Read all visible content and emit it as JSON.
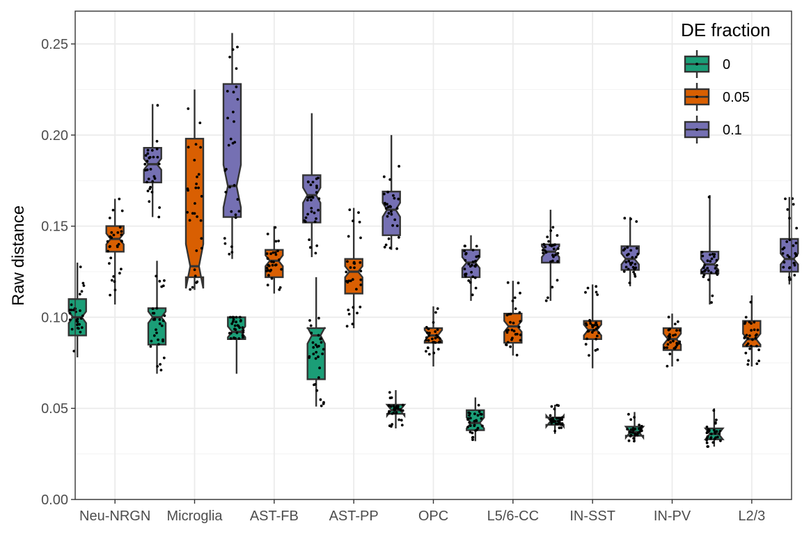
{
  "chart_data": {
    "type": "boxplot",
    "xlabel": "",
    "ylabel": "Raw distance",
    "ylim": [
      0,
      0.268
    ],
    "yticks": [
      "0.00",
      "0.05",
      "0.10",
      "0.15",
      "0.20",
      "0.25"
    ],
    "grid": true,
    "notched": true,
    "jittered_points": true,
    "legend_placement": "top-right",
    "legend": {
      "title": "DE fraction",
      "entries": [
        {
          "label": "0",
          "color": "#1B9E77"
        },
        {
          "label": "0.05",
          "color": "#D95F02"
        },
        {
          "label": "0.1",
          "color": "#7570B3"
        }
      ]
    },
    "categories": [
      "Neu-NRGN",
      "Microglia",
      "AST-FB",
      "AST-PP",
      "OPC",
      "L5/6-CC",
      "IN-SST",
      "IN-PV",
      "L2/3"
    ],
    "series": [
      {
        "name": "0",
        "color": "#1B9E77",
        "boxes": [
          {
            "q1": 0.09,
            "median": 0.1,
            "q3": 0.11,
            "whisker_low": 0.078,
            "whisker_high": 0.13
          },
          {
            "q1": 0.085,
            "median": 0.1,
            "q3": 0.105,
            "whisker_low": 0.069,
            "whisker_high": 0.131
          },
          {
            "q1": 0.088,
            "median": 0.092,
            "q3": 0.1,
            "whisker_low": 0.069,
            "whisker_high": 0.1
          },
          {
            "q1": 0.066,
            "median": 0.09,
            "q3": 0.094,
            "whisker_low": 0.051,
            "whisker_high": 0.122
          },
          {
            "q1": 0.047,
            "median": 0.049,
            "q3": 0.052,
            "whisker_low": 0.039,
            "whisker_high": 0.06
          },
          {
            "q1": 0.038,
            "median": 0.042,
            "q3": 0.049,
            "whisker_low": 0.032,
            "whisker_high": 0.056
          },
          {
            "q1": 0.041,
            "median": 0.043,
            "q3": 0.045,
            "whisker_low": 0.036,
            "whisker_high": 0.052
          },
          {
            "q1": 0.035,
            "median": 0.037,
            "q3": 0.04,
            "whisker_low": 0.032,
            "whisker_high": 0.048
          },
          {
            "q1": 0.033,
            "median": 0.036,
            "q3": 0.039,
            "whisker_low": 0.029,
            "whisker_high": 0.05
          }
        ]
      },
      {
        "name": "0.05",
        "color": "#D95F02",
        "boxes": [
          {
            "q1": 0.136,
            "median": 0.143,
            "q3": 0.15,
            "whisker_low": 0.107,
            "whisker_high": 0.165
          },
          {
            "q1": 0.122,
            "median": 0.128,
            "q3": 0.198,
            "whisker_low": 0.115,
            "whisker_high": 0.225
          },
          {
            "q1": 0.122,
            "median": 0.131,
            "q3": 0.137,
            "whisker_low": 0.113,
            "whisker_high": 0.15
          },
          {
            "q1": 0.113,
            "median": 0.125,
            "q3": 0.132,
            "whisker_low": 0.094,
            "whisker_high": 0.16
          },
          {
            "q1": 0.086,
            "median": 0.09,
            "q3": 0.094,
            "whisker_low": 0.073,
            "whisker_high": 0.106
          },
          {
            "q1": 0.086,
            "median": 0.095,
            "q3": 0.102,
            "whisker_low": 0.079,
            "whisker_high": 0.12
          },
          {
            "q1": 0.088,
            "median": 0.093,
            "q3": 0.098,
            "whisker_low": 0.072,
            "whisker_high": 0.118
          },
          {
            "q1": 0.082,
            "median": 0.088,
            "q3": 0.094,
            "whisker_low": 0.073,
            "whisker_high": 0.102
          },
          {
            "q1": 0.084,
            "median": 0.088,
            "q3": 0.098,
            "whisker_low": 0.073,
            "whisker_high": 0.112
          }
        ]
      },
      {
        "name": "0.1",
        "color": "#7570B3",
        "boxes": [
          {
            "q1": 0.174,
            "median": 0.184,
            "q3": 0.193,
            "whisker_low": 0.155,
            "whisker_high": 0.217
          },
          {
            "q1": 0.155,
            "median": 0.172,
            "q3": 0.228,
            "whisker_low": 0.132,
            "whisker_high": 0.256
          },
          {
            "q1": 0.152,
            "median": 0.167,
            "q3": 0.178,
            "whisker_low": 0.133,
            "whisker_high": 0.212
          },
          {
            "q1": 0.145,
            "median": 0.159,
            "q3": 0.169,
            "whisker_low": 0.137,
            "whisker_high": 0.2
          },
          {
            "q1": 0.122,
            "median": 0.13,
            "q3": 0.137,
            "whisker_low": 0.109,
            "whisker_high": 0.145
          },
          {
            "q1": 0.13,
            "median": 0.136,
            "q3": 0.14,
            "whisker_low": 0.109,
            "whisker_high": 0.159
          },
          {
            "q1": 0.126,
            "median": 0.132,
            "q3": 0.139,
            "whisker_low": 0.117,
            "whisker_high": 0.155
          },
          {
            "q1": 0.124,
            "median": 0.129,
            "q3": 0.136,
            "whisker_low": 0.107,
            "whisker_high": 0.167
          },
          {
            "q1": 0.125,
            "median": 0.132,
            "q3": 0.143,
            "whisker_low": 0.118,
            "whisker_high": 0.166
          }
        ]
      }
    ]
  }
}
